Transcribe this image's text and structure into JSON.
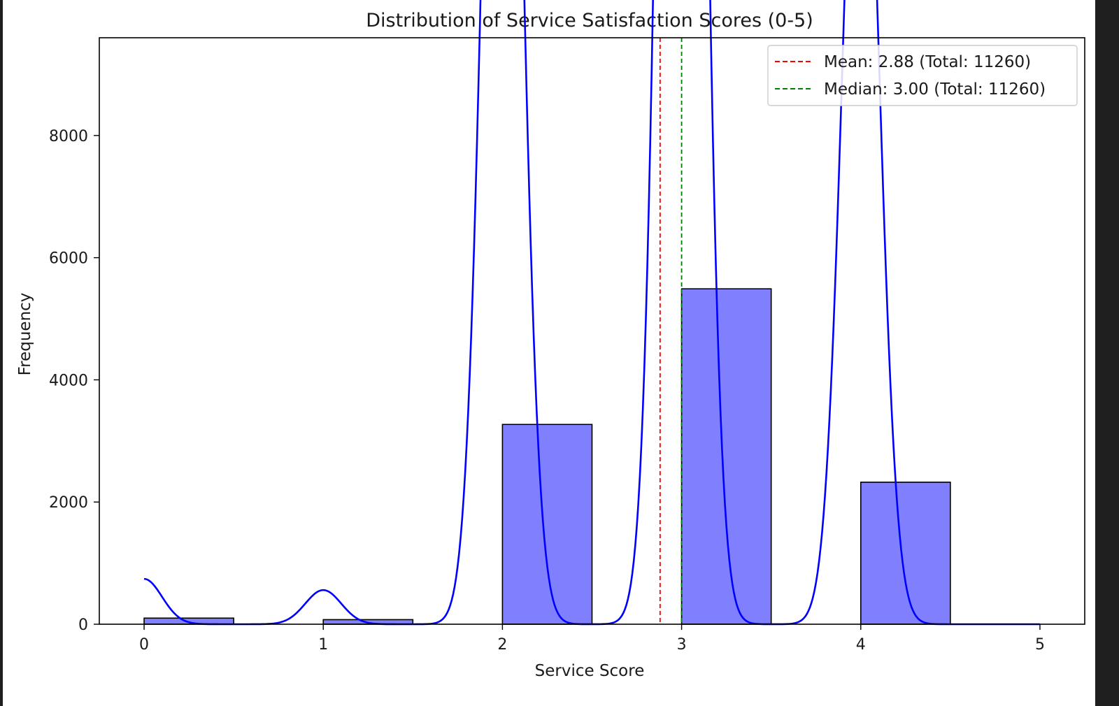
{
  "chart_data": {
    "type": "bar",
    "title": "Distribution of Service Satisfaction Scores (0-5)",
    "xlabel": "Service Score",
    "ylabel": "Frequency",
    "xlim": [
      -0.25,
      5.25
    ],
    "ylim": [
      0,
      9600
    ],
    "x_ticks": [
      0,
      1,
      2,
      3,
      4,
      5
    ],
    "y_ticks": [
      0,
      2000,
      4000,
      6000,
      8000
    ],
    "bin_width": 0.5,
    "bars": [
      {
        "x": 0,
        "value": 100
      },
      {
        "x": 1,
        "value": 75
      },
      {
        "x": 2,
        "value": 3270
      },
      {
        "x": 3,
        "value": 5490
      },
      {
        "x": 4,
        "value": 2325
      }
    ],
    "kde": {
      "bandwidth": 0.1,
      "scale": 2700,
      "peaks": [
        {
          "mu": 0,
          "weight": 0.0689
        },
        {
          "mu": 1,
          "weight": 0.0519
        },
        {
          "mu": 2,
          "weight": 2.008
        },
        {
          "mu": 3,
          "weight": 3.394
        },
        {
          "mu": 4,
          "weight": 1.437
        }
      ]
    },
    "reference_lines": [
      {
        "label": "Mean: 2.88 (Total: 11260)",
        "x": 2.88,
        "color": "#ff0000"
      },
      {
        "label": "Median: 3.00 (Total: 11260)",
        "x": 3.0,
        "color": "#008000"
      }
    ],
    "legend_position": "top-right",
    "grid": false,
    "colors": {
      "bar_fill": "#8080ff",
      "bar_edge": "#000000",
      "kde_line": "#0000ff"
    }
  }
}
